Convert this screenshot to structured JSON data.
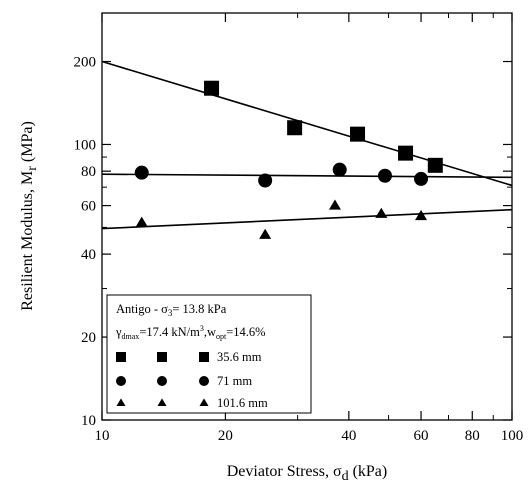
{
  "chart_data": {
    "type": "scatter",
    "xscale": "log",
    "yscale": "log",
    "xlim": [
      10,
      100
    ],
    "ylim": [
      10,
      300
    ],
    "grid": false,
    "xlabel": "Deviator Stress, σ",
    "xlabel_sub": "d",
    "xlabel_unit": " (kPa)",
    "ylabel": "Resilient Modulus, M",
    "ylabel_sub": "r",
    "ylabel_unit": " (MPa)",
    "x_ticks": [
      {
        "value": 10,
        "label": "10"
      },
      {
        "value": 20,
        "label": "20"
      },
      {
        "value": 40,
        "label": "40"
      },
      {
        "value": 60,
        "label": "60"
      },
      {
        "value": 80,
        "label": "80"
      },
      {
        "value": 100,
        "label": "100"
      }
    ],
    "x_minor_ticks": [
      30,
      50,
      70,
      90
    ],
    "y_ticks": [
      {
        "value": 10,
        "label": "10"
      },
      {
        "value": 20,
        "label": "20"
      },
      {
        "value": 40,
        "label": "40"
      },
      {
        "value": 60,
        "label": "60"
      },
      {
        "value": 80,
        "label": "80"
      },
      {
        "value": 100,
        "label": "100"
      },
      {
        "value": 200,
        "label": "200"
      }
    ],
    "y_minor_ticks": [
      30,
      50,
      70,
      90
    ],
    "legend": {
      "placement": "bottom-left",
      "title": "Antigo - σ",
      "title_sub": "3",
      "title_rest": "= 13.8 kPa",
      "line2_a": "γ",
      "line2_a_sub": "dmax",
      "line2_b": "=17.4 kN/m",
      "line2_b_sup": "3",
      "line2_c": ",w",
      "line2_c_sub": "opt",
      "line2_d": "=14.6%"
    },
    "series": [
      {
        "name": "35.6 mm",
        "marker": "square",
        "points": [
          [
            18.5,
            160
          ],
          [
            29.5,
            115
          ],
          [
            42,
            109
          ],
          [
            55,
            93
          ],
          [
            65,
            84
          ]
        ],
        "fit": [
          [
            10,
            200
          ],
          [
            100,
            71
          ]
        ]
      },
      {
        "name": "71 mm",
        "marker": "circle",
        "points": [
          [
            12.5,
            79
          ],
          [
            25,
            74
          ],
          [
            38,
            81
          ],
          [
            49,
            77
          ],
          [
            60,
            75
          ]
        ],
        "fit": [
          [
            10,
            78
          ],
          [
            100,
            76
          ]
        ]
      },
      {
        "name": "101.6 mm",
        "marker": "triangle",
        "points": [
          [
            12.5,
            52
          ],
          [
            25,
            47
          ],
          [
            37,
            60
          ],
          [
            48,
            56
          ],
          [
            60,
            55
          ]
        ],
        "fit": [
          [
            10,
            49.5
          ],
          [
            100,
            58
          ]
        ]
      }
    ]
  }
}
